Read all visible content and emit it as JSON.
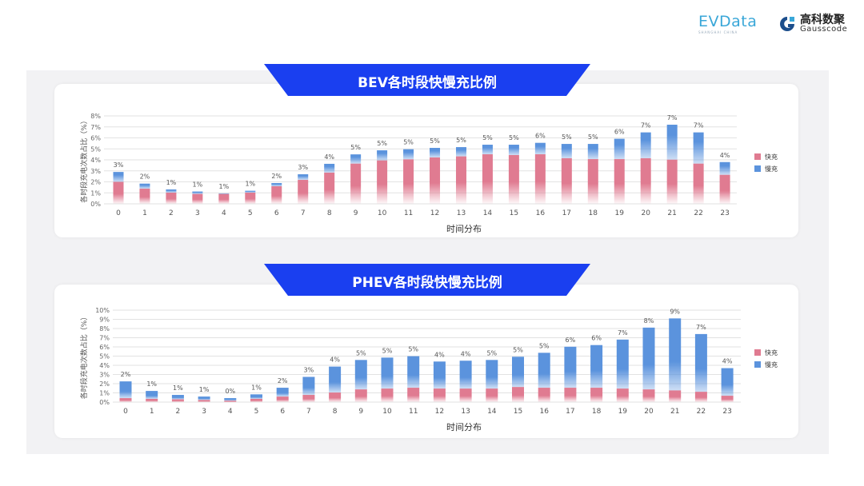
{
  "logos": {
    "evdata": "EVData",
    "evdata_sub": "SHANGHAI CHINA",
    "gauss_cn": "高科数聚",
    "gauss_en": "Gausscode"
  },
  "colors": {
    "fast": "#e07b91",
    "slow": "#5b93dd",
    "banner": "#1a3ff0"
  },
  "chart_data": [
    {
      "type": "bar",
      "stacked": true,
      "title": "BEV各时段快慢充比例",
      "xlabel": "时间分布",
      "ylabel": "各时段充电次数占比（%）",
      "ylim": [
        0,
        8
      ],
      "yticks": [
        "0%",
        "1%",
        "2%",
        "3%",
        "4%",
        "5%",
        "6%",
        "7%",
        "8%"
      ],
      "grid": true,
      "legend_position": "right",
      "categories": [
        "0",
        "1",
        "2",
        "3",
        "4",
        "5",
        "6",
        "7",
        "8",
        "9",
        "10",
        "11",
        "12",
        "13",
        "14",
        "15",
        "16",
        "17",
        "18",
        "19",
        "20",
        "21",
        "22",
        "23"
      ],
      "series": [
        {
          "name": "快充",
          "values": [
            2.0,
            1.38,
            1.02,
            0.9,
            0.9,
            1.02,
            1.6,
            2.18,
            2.84,
            3.66,
            3.95,
            4.05,
            4.22,
            4.32,
            4.51,
            4.44,
            4.51,
            4.15,
            4.07,
            4.07,
            4.15,
            4.02,
            3.66,
            2.64
          ]
        },
        {
          "name": "慢充",
          "values": [
            0.9,
            0.46,
            0.29,
            0.22,
            0.05,
            0.17,
            0.29,
            0.51,
            0.8,
            0.84,
            0.92,
            0.92,
            0.87,
            0.84,
            0.87,
            0.94,
            1.04,
            1.3,
            1.38,
            1.85,
            2.35,
            3.18,
            2.84,
            1.16
          ]
        }
      ],
      "data_labels": [
        "3%",
        "2%",
        "1%",
        "1%",
        "1%",
        "1%",
        "2%",
        "3%",
        "4%",
        "5%",
        "5%",
        "5%",
        "5%",
        "5%",
        "5%",
        "5%",
        "6%",
        "5%",
        "5%",
        "6%",
        "7%",
        "7%",
        "7%",
        "4%"
      ]
    },
    {
      "type": "bar",
      "stacked": true,
      "title": "PHEV各时段快慢充比例",
      "xlabel": "时间分布",
      "ylabel": "各时段充电次数占比（%）",
      "ylim": [
        0,
        10
      ],
      "yticks": [
        "0%",
        "1%",
        "2%",
        "3%",
        "4%",
        "5%",
        "6%",
        "7%",
        "8%",
        "9%",
        "10%"
      ],
      "grid": true,
      "legend_position": "right",
      "categories": [
        "0",
        "1",
        "2",
        "3",
        "4",
        "5",
        "6",
        "7",
        "8",
        "9",
        "10",
        "11",
        "12",
        "13",
        "14",
        "15",
        "16",
        "17",
        "18",
        "19",
        "20",
        "21",
        "22",
        "23"
      ],
      "series": [
        {
          "name": "快充",
          "values": [
            0.43,
            0.35,
            0.3,
            0.23,
            0.15,
            0.35,
            0.6,
            0.78,
            1.04,
            1.38,
            1.47,
            1.56,
            1.47,
            1.47,
            1.47,
            1.64,
            1.56,
            1.56,
            1.56,
            1.47,
            1.38,
            1.27,
            1.12,
            0.69
          ]
        },
        {
          "name": "慢充",
          "values": [
            1.82,
            0.86,
            0.48,
            0.37,
            0.28,
            0.49,
            0.96,
            1.96,
            2.82,
            3.2,
            3.37,
            3.43,
            2.94,
            3.03,
            3.11,
            3.29,
            3.8,
            4.46,
            4.64,
            5.33,
            6.72,
            7.83,
            6.28,
            3.0
          ]
        }
      ],
      "data_labels": [
        "2%",
        "1%",
        "1%",
        "1%",
        "0%",
        "1%",
        "2%",
        "3%",
        "4%",
        "5%",
        "5%",
        "5%",
        "4%",
        "4%",
        "5%",
        "5%",
        "5%",
        "6%",
        "6%",
        "7%",
        "8%",
        "9%",
        "7%",
        "4%"
      ]
    }
  ]
}
